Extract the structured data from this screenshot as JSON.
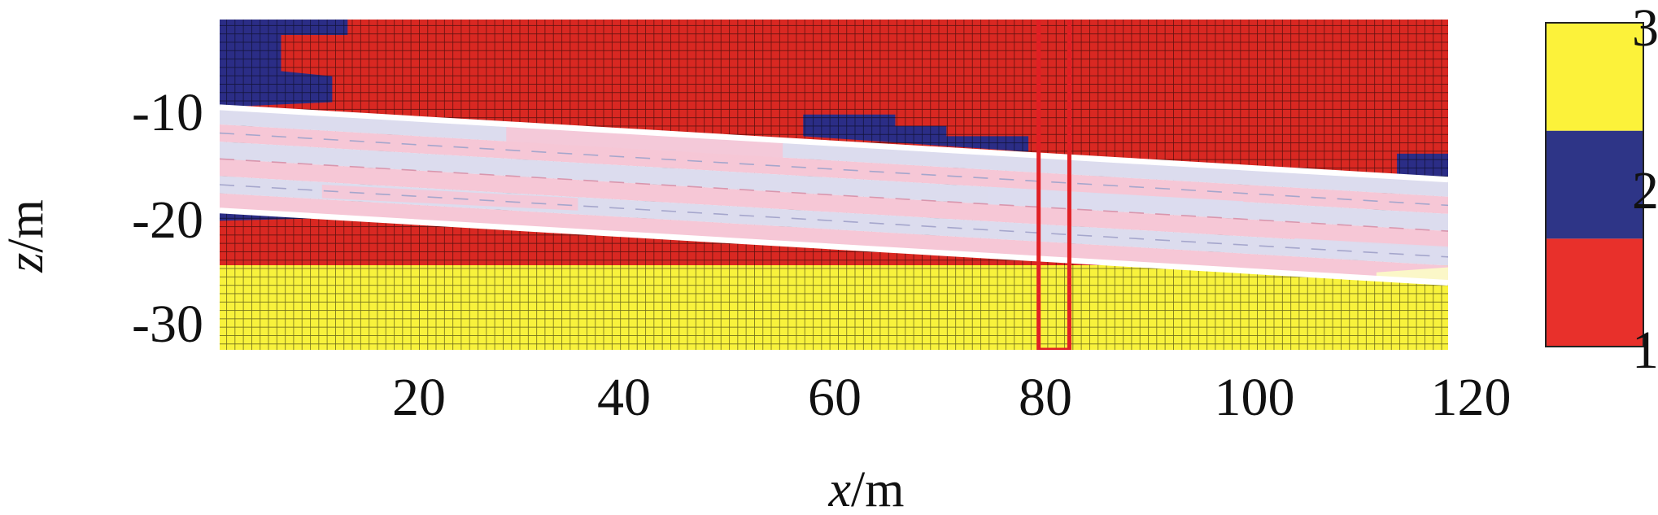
{
  "chart_data": {
    "type": "heatmap",
    "xlabel": {
      "var": "x",
      "unit": "/m"
    },
    "ylabel": {
      "var": "z",
      "unit": "/m"
    },
    "xlim": [
      0,
      120
    ],
    "ylim": [
      -32,
      0
    ],
    "x_ticks": [
      20,
      40,
      60,
      80,
      100,
      120
    ],
    "y_ticks": [
      -10,
      -20,
      -30
    ],
    "colorbar": {
      "ticks": [
        1,
        2,
        3
      ],
      "levels": [
        {
          "value": 1,
          "color": "#e8302b"
        },
        {
          "value": 2,
          "color": "#2e3587"
        },
        {
          "value": 3,
          "color": "#fcf23a"
        }
      ]
    },
    "colors": {
      "class1": "#d92822",
      "class2": "#2b2d86",
      "class3": "#f8f23c",
      "band_pink": "#f6c7d6",
      "band_lavender": "#dcdcee",
      "boundary": "#ffffff",
      "highlight": "#e01f24",
      "grid": "#000000"
    },
    "domain_polygons": [
      {
        "class": 1,
        "points": [
          [
            0,
            0
          ],
          [
            120,
            0
          ],
          [
            120,
            -15.5
          ],
          [
            0,
            -8.5
          ]
        ]
      },
      {
        "class": 2,
        "points": [
          [
            0,
            0
          ],
          [
            12.5,
            0
          ],
          [
            12.5,
            -1.5
          ],
          [
            6,
            -1.5
          ],
          [
            6,
            -5
          ],
          [
            11,
            -5.5
          ],
          [
            11,
            -8
          ],
          [
            0,
            -8.5
          ]
        ]
      },
      {
        "class": 2,
        "points": [
          [
            57,
            -9.2
          ],
          [
            66,
            -9.2
          ],
          [
            66,
            -10.3
          ],
          [
            71,
            -10.3
          ],
          [
            71,
            -11.3
          ],
          [
            79,
            -11.3
          ],
          [
            79,
            -12.8
          ],
          [
            57,
            -11.3
          ]
        ]
      },
      {
        "class": 2,
        "points": [
          [
            115,
            -13
          ],
          [
            120,
            -13
          ],
          [
            120,
            -15.5
          ],
          [
            115,
            -15.3
          ]
        ]
      },
      {
        "class": 1,
        "points": [
          [
            0,
            -18.5
          ],
          [
            120,
            -25.5
          ],
          [
            120,
            -23.8
          ],
          [
            0,
            -23.8
          ]
        ]
      },
      {
        "class": 2,
        "points": [
          [
            0,
            -18.5
          ],
          [
            12,
            -19.2
          ],
          [
            0,
            -19.5
          ]
        ]
      },
      {
        "class": 3,
        "points": [
          [
            0,
            -23.8
          ],
          [
            120,
            -23.8
          ],
          [
            120,
            -32
          ],
          [
            0,
            -32
          ]
        ]
      }
    ],
    "layer_boundaries": [
      {
        "name": "upper",
        "x": [
          0,
          120
        ],
        "z": [
          -8.5,
          -15.5
        ]
      },
      {
        "name": "lower",
        "x": [
          0,
          120
        ],
        "z": [
          -18.5,
          -25.5
        ]
      }
    ],
    "highlight_column": {
      "x": [
        80,
        83
      ],
      "z": [
        0,
        -32
      ]
    }
  }
}
